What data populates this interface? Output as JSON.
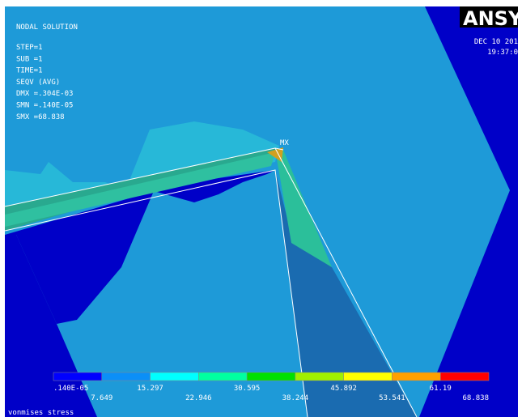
{
  "header": {
    "title": "NODAL SOLUTION",
    "lines": [
      "STEP=1",
      "SUB =1",
      "TIME=1",
      "SEQV     (AVG)",
      "DMX =.304E-03",
      "SMN =.140E-05",
      "SMX =68.838"
    ]
  },
  "logo": "ANSY",
  "date": "DEC 10 201",
  "time": "19:37:0",
  "max_marker": "MX",
  "legend": {
    "colors": [
      "#0000ff",
      "#0b8ff7",
      "#00ffff",
      "#00ffa0",
      "#00e000",
      "#a0f000",
      "#ffff00",
      "#ffa000",
      "#ff0000"
    ],
    "labels": [
      ".140E-05",
      "7.649",
      "15.297",
      "22.946",
      "30.595",
      "38.244",
      "45.892",
      "53.541",
      "61.19",
      "68.838"
    ]
  },
  "footer": "vonmises stress"
}
